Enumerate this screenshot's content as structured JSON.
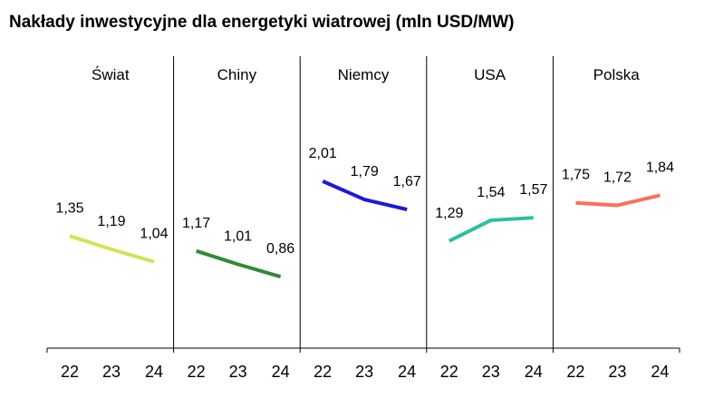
{
  "chart_data": {
    "type": "line",
    "title": "Nakłady inwestycyjne dla energetyki wiatrowej (mln USD/MW)",
    "xlabel": "",
    "ylabel": "",
    "ylim": [
      0,
      2.5
    ],
    "grid": false,
    "categories": [
      "22",
      "23",
      "24"
    ],
    "panels": [
      {
        "name": "Świat",
        "color": "#d4e157",
        "values": [
          1.35,
          1.19,
          1.04
        ],
        "labels": [
          "1,35",
          "1,19",
          "1,04"
        ]
      },
      {
        "name": "Chiny",
        "color": "#2e8b3a",
        "values": [
          1.17,
          1.01,
          0.86
        ],
        "labels": [
          "1,17",
          "1,01",
          "0,86"
        ]
      },
      {
        "name": "Niemcy",
        "color": "#1a1adb",
        "values": [
          2.01,
          1.79,
          1.67
        ],
        "labels": [
          "2,01",
          "1,79",
          "1,67"
        ]
      },
      {
        "name": "USA",
        "color": "#2bbfa4",
        "values": [
          1.29,
          1.54,
          1.57
        ],
        "labels": [
          "1,29",
          "1,54",
          "1,57"
        ]
      },
      {
        "name": "Polska",
        "color": "#ff6f5a",
        "values": [
          1.75,
          1.72,
          1.84
        ],
        "labels": [
          "1,75",
          "1,72",
          "1,84"
        ]
      }
    ]
  }
}
